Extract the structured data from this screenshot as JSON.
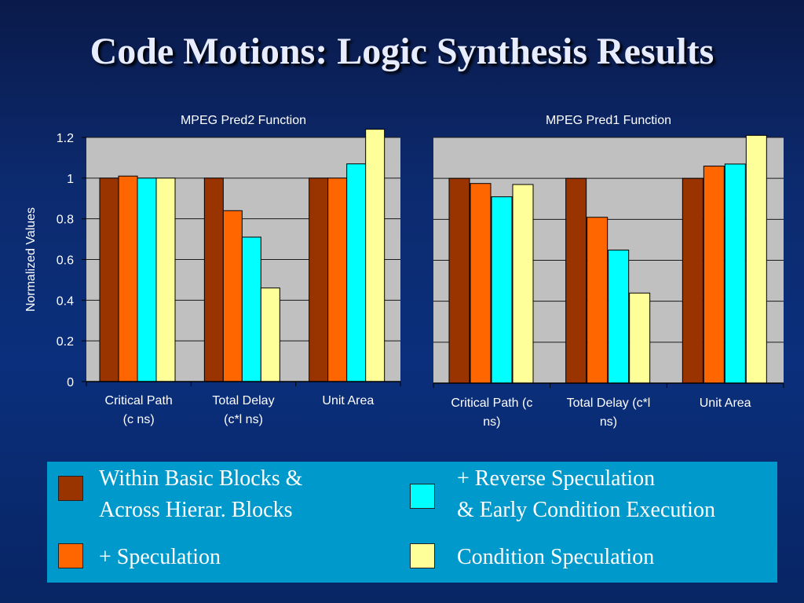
{
  "title": "Code Motions: Logic Synthesis Results",
  "colors": {
    "within_basic_blocks": "#993300",
    "speculation": "#ff6600",
    "reverse_speculation": "#00ffff",
    "condition_speculation": "#ffff99"
  },
  "chart_data": [
    {
      "type": "bar",
      "title": "MPEG Pred2 Function",
      "ylabel": "Normalized Values",
      "ylim": [
        0,
        1.2
      ],
      "yticks": [
        "0",
        "0.2",
        "0.4",
        "0.6",
        "0.8",
        "1",
        "1.2"
      ],
      "categories": [
        [
          "Critical Path",
          "(c ns)"
        ],
        [
          "Total Delay",
          "(c*l ns)"
        ],
        [
          "Unit Area"
        ]
      ],
      "series": [
        {
          "values": [
            1.0,
            1.0,
            1.0
          ]
        },
        {
          "values": [
            1.01,
            0.84,
            1.0
          ]
        },
        {
          "values": [
            1.0,
            0.71,
            1.07
          ]
        },
        {
          "values": [
            1.0,
            0.46,
            1.24
          ]
        }
      ],
      "grid": true,
      "legend": "bottom"
    },
    {
      "type": "bar",
      "title": "MPEG Pred1 Function",
      "ylabel": "",
      "ylim": [
        0,
        1.2
      ],
      "yticks": [],
      "categories": [
        [
          "Critical Path (c",
          "ns)"
        ],
        [
          "Total Delay (c*l",
          "ns)"
        ],
        [
          "Unit Area"
        ]
      ],
      "series": [
        {
          "values": [
            1.0,
            1.0,
            1.0
          ]
        },
        {
          "values": [
            0.975,
            0.81,
            1.06
          ]
        },
        {
          "values": [
            0.91,
            0.65,
            1.07
          ]
        },
        {
          "values": [
            0.97,
            0.44,
            1.21
          ]
        }
      ],
      "grid": true,
      "legend": "bottom"
    }
  ],
  "legend": {
    "items": [
      {
        "lines": [
          "Within Basic Blocks &",
          "Across Hierar. Blocks"
        ],
        "color": "#993300"
      },
      {
        "lines": [
          "+ Speculation"
        ],
        "color": "#ff6600"
      },
      {
        "lines": [
          "+ Reverse Speculation",
          "& Early Condition Execution"
        ],
        "color": "#00ffff"
      },
      {
        "lines": [
          "Condition Speculation"
        ],
        "color": "#ffff99"
      }
    ]
  }
}
